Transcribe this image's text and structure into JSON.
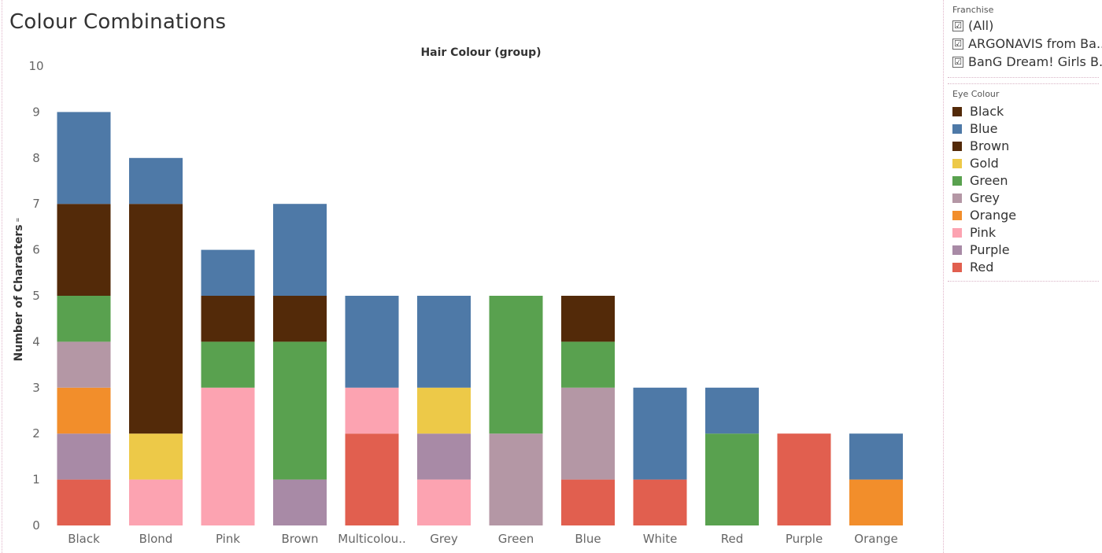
{
  "title": "Colour Combinations",
  "filters": {
    "franchise": {
      "title": "Franchise",
      "check_glyph": "☑",
      "items": [
        "(All)",
        "ARGONAVIS from Ba...",
        "BanG Dream! Girls B..."
      ]
    }
  },
  "legend": {
    "title": "Eye Colour",
    "items": [
      {
        "label": "Black",
        "color": "#532a09"
      },
      {
        "label": "Blue",
        "color": "#4e79a7"
      },
      {
        "label": "Brown",
        "color": "#532a09"
      },
      {
        "label": "Gold",
        "color": "#edc948"
      },
      {
        "label": "Green",
        "color": "#59a14f"
      },
      {
        "label": "Grey",
        "color": "#b497a5"
      },
      {
        "label": "Orange",
        "color": "#f28e2b"
      },
      {
        "label": "Pink",
        "color": "#fca3b1"
      },
      {
        "label": "Purple",
        "color": "#a88aa6"
      },
      {
        "label": "Red",
        "color": "#e15f4f"
      }
    ]
  },
  "chart_data": {
    "type": "bar",
    "stacked": true,
    "title": "Hair Colour (group)",
    "xlabel": "",
    "ylabel": "Number of Characters",
    "ylabel_sort_marker": "⁼",
    "ylim": [
      0,
      10
    ],
    "yticks": [
      0,
      1,
      2,
      3,
      4,
      5,
      6,
      7,
      8,
      9,
      10
    ],
    "grid": false,
    "legend_position": "right",
    "categories": [
      "Black",
      "Blond",
      "Pink",
      "Brown",
      "Multicolou..",
      "Grey",
      "Green",
      "Blue",
      "White",
      "Red",
      "Purple",
      "Orange"
    ],
    "series": [
      {
        "name": "Red",
        "values": [
          1,
          0,
          0,
          0,
          2,
          0,
          0,
          1,
          1,
          0,
          2,
          0
        ]
      },
      {
        "name": "Pink",
        "values": [
          0,
          1,
          3,
          0,
          1,
          1,
          0,
          0,
          0,
          0,
          0,
          0
        ]
      },
      {
        "name": "Orange",
        "values": [
          0,
          0,
          0,
          0,
          0,
          0,
          0,
          0,
          0,
          0,
          0,
          1
        ]
      },
      {
        "name": "Purple",
        "values": [
          1,
          0,
          0,
          1,
          0,
          1,
          0,
          0,
          0,
          0,
          0,
          0
        ]
      },
      {
        "name": "Grey",
        "values": [
          0,
          0,
          0,
          0,
          0,
          0,
          2,
          2,
          0,
          0,
          0,
          0
        ]
      },
      {
        "name": "Gold",
        "values": [
          0,
          1,
          0,
          0,
          0,
          1,
          0,
          0,
          0,
          0,
          0,
          0
        ]
      },
      {
        "name": "Orange",
        "values": [
          1,
          0,
          0,
          0,
          0,
          0,
          0,
          0,
          0,
          0,
          0,
          0
        ]
      },
      {
        "name": "Grey",
        "values": [
          1,
          0,
          0,
          0,
          0,
          0,
          0,
          0,
          0,
          0,
          0,
          0
        ]
      },
      {
        "name": "Green",
        "values": [
          1,
          0,
          1,
          3,
          0,
          0,
          3,
          1,
          0,
          2,
          0,
          0
        ]
      },
      {
        "name": "Brown",
        "values": [
          2,
          5,
          1,
          1,
          0,
          0,
          0,
          1,
          0,
          0,
          0,
          0
        ]
      },
      {
        "name": "Blue",
        "values": [
          2,
          1,
          1,
          2,
          2,
          2,
          0,
          0,
          2,
          1,
          0,
          1
        ]
      }
    ]
  }
}
